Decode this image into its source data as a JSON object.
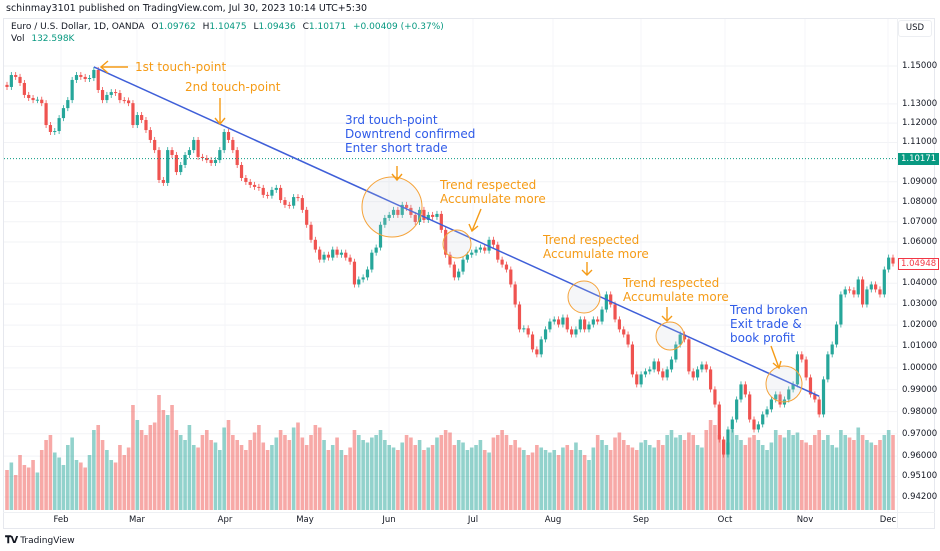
{
  "publish_line": "schinmay3101 published on TradingView.com, Jul 30, 2023 10:14 UTC+5:30",
  "legend": {
    "symbol": "Euro / U.S. Dollar, 1D, OANDA",
    "o_label": "O",
    "o": "1.09762",
    "h_label": "H",
    "h": "1.10475",
    "l_label": "L",
    "l": "1.09436",
    "c_label": "C",
    "c": "1.10171",
    "change": "+0.00409 (+0.37%)",
    "vol_label": "Vol",
    "vol": "132.598K"
  },
  "currency_button": "USD",
  "footer_brand": "TradingView",
  "annotations": {
    "first": "1st touch-point",
    "second": "2nd touch-point",
    "third": [
      "3rd touch-point",
      "Downtrend confirmed",
      "Enter short trade"
    ],
    "respected1": [
      "Trend respected",
      "Accumulate more"
    ],
    "respected2": [
      "Trend respected",
      "Accumulate more"
    ],
    "respected3": [
      "Trend respected",
      "Accumulate more"
    ],
    "broken": [
      "Trend broken",
      "Exit trade &",
      "book profit"
    ]
  },
  "chart_data": {
    "type": "candlestick",
    "title": "",
    "y_scale": "log",
    "ylim": [
      0.942,
      1.15
    ],
    "y_ticks": [
      "1.15000",
      "1.13000",
      "1.12000",
      "1.11000",
      "1.09000",
      "1.08000",
      "1.07000",
      "1.06000",
      "1.04000",
      "1.03000",
      "1.02000",
      "1.01000",
      "1.00000",
      "0.99000",
      "0.98000",
      "0.97000",
      "0.96000",
      "0.95100",
      "0.94200"
    ],
    "price_markers": [
      {
        "label": "1.10171",
        "style": "up"
      },
      {
        "label": "1.04948",
        "style": "down"
      }
    ],
    "x_ticks": [
      "Feb",
      "Mar",
      "Apr",
      "May",
      "Jun",
      "Jul",
      "Aug",
      "Sep",
      "Oct",
      "Nov",
      "Dec"
    ],
    "grid": true,
    "colors": {
      "up": "#26a69a",
      "down": "#ef5350",
      "trendline": "#3f5fd8",
      "annotation_orange": "#f59b16",
      "annotation_blue": "#2f5be8",
      "last_price_line": "#089981"
    },
    "first_open": 1.14,
    "closes": [
      1.1389,
      1.1452,
      1.1442,
      1.141,
      1.1347,
      1.1331,
      1.132,
      1.1322,
      1.1304,
      1.119,
      1.1154,
      1.1159,
      1.1226,
      1.1278,
      1.132,
      1.1426,
      1.1452,
      1.1442,
      1.1431,
      1.1436,
      1.1479,
      1.1373,
      1.132,
      1.1347,
      1.1362,
      1.1357,
      1.132,
      1.1318,
      1.1304,
      1.119,
      1.1242,
      1.1216,
      1.1164,
      1.1113,
      1.1061,
      1.0909,
      1.0894,
      1.1061,
      1.1036,
      1.0949,
      1.0985,
      1.1036,
      1.1061,
      1.1113,
      1.1026,
      1.102,
      1.101,
      1.0995,
      1.101,
      1.1061,
      1.1154,
      1.1113,
      1.1061,
      1.0985,
      1.0919,
      1.0899,
      1.0884,
      1.0874,
      1.0869,
      1.0834,
      1.083,
      1.0859,
      1.0869,
      1.0808,
      1.0784,
      1.078,
      1.0823,
      1.0818,
      1.0759,
      1.0685,
      1.0611,
      1.0563,
      1.0514,
      1.0538,
      1.0524,
      1.0563,
      1.0538,
      1.0548,
      1.0524,
      1.0504,
      1.0394,
      1.0418,
      1.0428,
      1.0466,
      1.0548,
      1.0573,
      1.0685,
      1.0719,
      1.0734,
      1.0759,
      1.0734,
      1.0784,
      1.0769,
      1.0734,
      1.0699,
      1.0759,
      1.0709,
      1.0734,
      1.0724,
      1.0739,
      1.066,
      1.0538,
      1.049,
      1.0428,
      1.0456,
      1.0514,
      1.0538,
      1.0548,
      1.0563,
      1.0573,
      1.0558,
      1.0611,
      1.0587,
      1.0514,
      1.049,
      1.0466,
      1.0394,
      1.0298,
      1.018,
      1.0185,
      1.0156,
      1.0086,
      1.0063,
      1.0133,
      1.018,
      1.0217,
      1.0227,
      1.0203,
      1.0236,
      1.018,
      1.0156,
      1.018,
      1.0227,
      1.018,
      1.0203,
      1.0227,
      1.0217,
      1.0274,
      1.0346,
      1.0298,
      1.0227,
      1.018,
      1.0156,
      1.0109,
      0.997,
      0.9924,
      0.997,
      0.9984,
      0.9993,
      1.003,
      0.9984,
      0.9956,
      0.9993,
      1.0039,
      1.0109,
      1.0156,
      1.0133,
      0.9984,
      0.9956,
      0.9993,
      1.0016,
      0.9993,
      0.9901,
      0.9832,
      0.9674,
      0.9607,
      0.9719,
      0.9764,
      0.9855,
      0.9924,
      0.9878,
      0.9764,
      0.9719,
      0.9742,
      0.9787,
      0.981,
      0.9855,
      0.9878,
      0.9832,
      0.9855,
      0.9901,
      0.9924,
      1.0063,
      1.0039,
      0.9956,
      0.9878,
      0.9855,
      0.9787,
      0.9947,
      1.0063,
      1.0109,
      1.0203,
      1.0346,
      1.037,
      1.0366,
      1.0346,
      1.0418,
      1.0298,
      1.037,
      1.0394,
      1.037,
      1.0346,
      1.0466,
      1.0524,
      1.0495
    ],
    "volume_k": [
      80,
      95,
      70,
      110,
      90,
      85,
      100,
      75,
      120,
      140,
      150,
      115,
      105,
      90,
      130,
      145,
      100,
      95,
      85,
      110,
      160,
      170,
      140,
      120,
      100,
      95,
      130,
      110,
      125,
      210,
      180,
      160,
      150,
      170,
      175,
      230,
      200,
      190,
      210,
      160,
      150,
      140,
      170,
      130,
      125,
      150,
      160,
      140,
      135,
      120,
      165,
      180,
      150,
      140,
      130,
      120,
      140,
      155,
      170,
      135,
      120,
      130,
      145,
      160,
      150,
      140,
      165,
      175,
      145,
      130,
      150,
      170,
      165,
      140,
      120,
      130,
      145,
      120,
      110,
      125,
      160,
      150,
      140,
      135,
      145,
      150,
      160,
      140,
      130,
      125,
      120,
      135,
      150,
      145,
      130,
      140,
      120,
      125,
      130,
      145,
      150,
      160,
      155,
      130,
      140,
      135,
      120,
      125,
      130,
      140,
      120,
      115,
      145,
      150,
      160,
      150,
      130,
      140,
      125,
      120,
      110,
      115,
      130,
      125,
      120,
      115,
      120,
      110,
      125,
      130,
      120,
      135,
      120,
      110,
      100,
      125,
      150,
      140,
      130,
      120,
      145,
      155,
      140,
      130,
      125,
      120,
      135,
      140,
      130,
      125,
      140,
      130,
      150,
      160,
      145,
      150,
      140,
      155,
      150,
      130,
      125,
      160,
      180,
      170,
      150,
      140,
      135,
      160,
      150,
      140,
      130,
      145,
      150,
      140,
      130,
      120,
      135,
      160,
      150,
      145,
      160,
      150,
      155,
      140,
      135,
      130,
      150,
      160,
      140,
      150,
      130,
      125,
      160,
      150,
      145,
      140,
      165,
      150,
      140,
      135,
      130,
      140,
      150,
      160,
      150
    ],
    "trendline": {
      "start": {
        "bar": 20,
        "price": 1.1495
      },
      "end": {
        "bar": 187,
        "price": 0.987
      }
    },
    "last_price": 1.10171
  }
}
